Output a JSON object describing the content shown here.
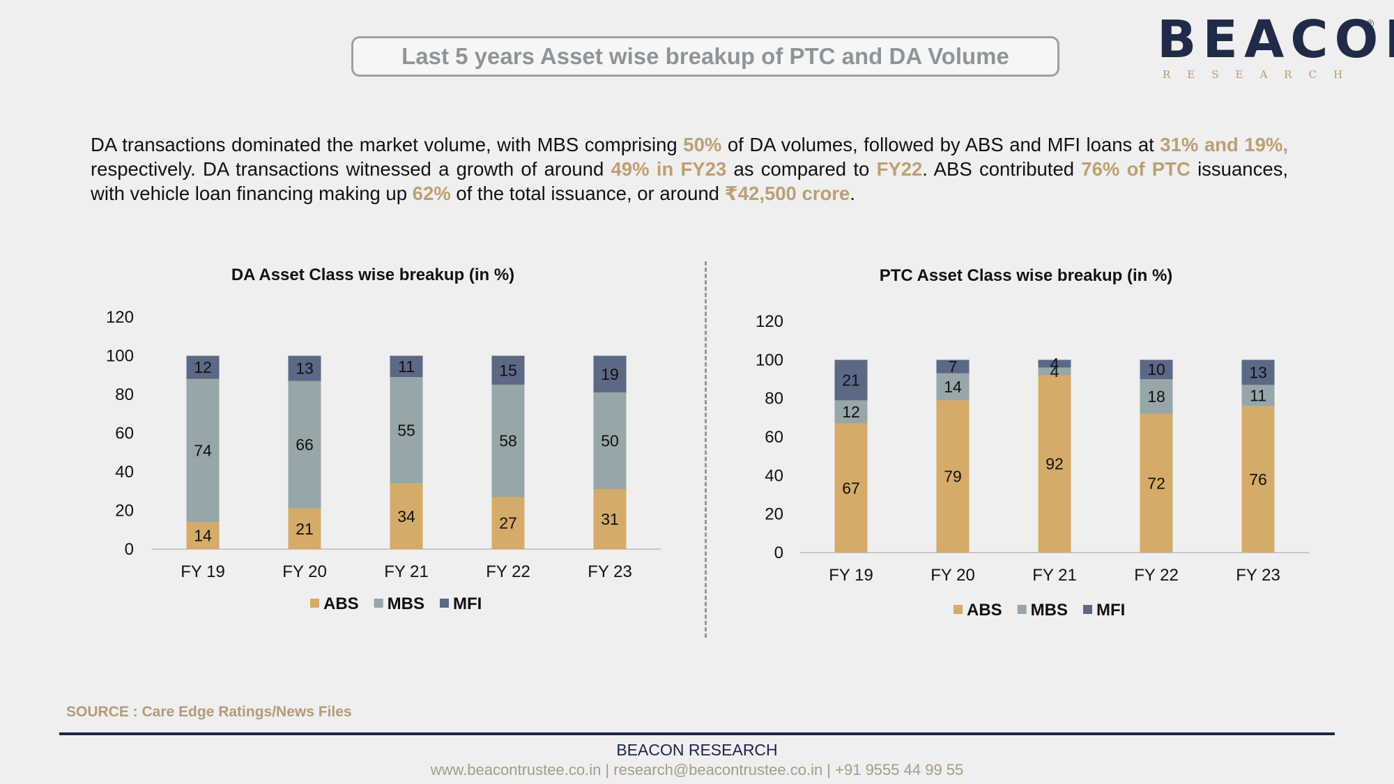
{
  "header": {
    "title": "Last 5 years Asset wise breakup of PTC and DA Volume"
  },
  "logo": {
    "word": "BEACON",
    "sub": "RESEARCH",
    "reg": "®"
  },
  "summary": {
    "p1": "DA transactions dominated the market volume, with MBS comprising ",
    "h1": "50%",
    "p2": " of DA volumes, followed by ABS and MFI loans at ",
    "h2": "31% and 19%,",
    "p3": " respectively. DA transactions witnessed a growth of around ",
    "h3": "49% in FY23",
    "p4": " as compared to ",
    "h4": "FY22",
    "p5": ". ABS contributed ",
    "h5": "76% of PTC",
    "p6": " issuances, with vehicle loan financing making up ",
    "h6": "62%",
    "p7": " of the total issuance, or around ",
    "h7": "₹42,500 crore",
    "p8": "."
  },
  "colors": {
    "ABS": "#d4ab68",
    "MBS": "#97a6a8",
    "MFI": "#5b6886",
    "axis": "#c8c8c8"
  },
  "chart_data": [
    {
      "type": "bar",
      "stacked": true,
      "title": "DA Asset Class wise breakup (in %)",
      "categories": [
        "FY 19",
        "FY 20",
        "FY 21",
        "FY 22",
        "FY 23"
      ],
      "ylim": [
        0,
        120
      ],
      "yticks": [
        "0",
        "20",
        "40",
        "60",
        "80",
        "100",
        "120"
      ],
      "grid": false,
      "legend": "bottom",
      "series": [
        {
          "name": "ABS",
          "values": [
            14,
            21,
            34,
            27,
            31
          ]
        },
        {
          "name": "MBS",
          "values": [
            74,
            66,
            55,
            58,
            50
          ]
        },
        {
          "name": "MFI",
          "values": [
            12,
            13,
            11,
            15,
            19
          ]
        }
      ]
    },
    {
      "type": "bar",
      "stacked": true,
      "title": "PTC Asset Class wise breakup (in %)",
      "categories": [
        "FY 19",
        "FY 20",
        "FY 21",
        "FY 22",
        "FY 23"
      ],
      "ylim": [
        0,
        120
      ],
      "yticks": [
        "0",
        "20",
        "40",
        "60",
        "80",
        "100",
        "120"
      ],
      "grid": false,
      "legend": "bottom",
      "series": [
        {
          "name": "ABS",
          "values": [
            67,
            79,
            92,
            72,
            76
          ]
        },
        {
          "name": "MBS",
          "values": [
            12,
            14,
            4,
            18,
            11
          ]
        },
        {
          "name": "MFI",
          "values": [
            21,
            7,
            4,
            10,
            13
          ]
        }
      ]
    }
  ],
  "source": "SOURCE : Care Edge Ratings/News Files",
  "footer": {
    "title": "BEACON RESEARCH",
    "contact": "www.beacontrustee.co.in | research@beacontrustee.co.in | +91 9555 44 99 55"
  }
}
